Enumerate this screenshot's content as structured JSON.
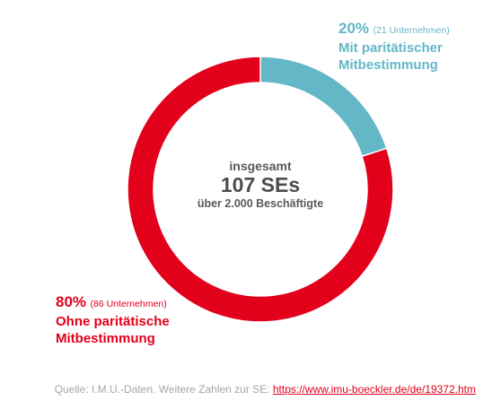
{
  "chart_data": {
    "type": "pie",
    "variant": "donut",
    "series": [
      {
        "name": "Mit paritätischer Mitbestimmung",
        "percent": 20,
        "count_label": "(21 Unternehmen)",
        "color": "#63b7c6"
      },
      {
        "name": "Ohne paritätische Mitbestimmung",
        "percent": 80,
        "count_label": "(86 Unternehmen)",
        "color": "#e2001a"
      }
    ],
    "center": {
      "label": "insgesamt",
      "value": "107 SEs",
      "sublabel": "über 2.000 Beschäftigte"
    }
  },
  "annotations": {
    "teal": {
      "percent_text": "20%",
      "count_text": "(21 Unternehmen)",
      "label_line1": "Mit paritätischer",
      "label_line2": "Mitbestimmung"
    },
    "red": {
      "percent_text": "80%",
      "count_text": "(86 Unternehmen)",
      "label_line1": "Ohne paritätische",
      "label_line2": "Mitbestimmung"
    }
  },
  "footer": {
    "source_text": "Quelle: I.M.U.-Daten.  Weitere Zahlen zur SE: ",
    "link_text": "https://www.imu-boeckler.de/de/19372.htm"
  }
}
